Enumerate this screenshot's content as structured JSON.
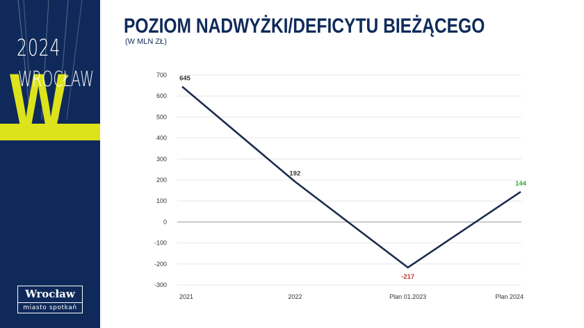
{
  "branding": {
    "year": "2024",
    "city_wordmark": "WROCŁAW",
    "big_letter": "W",
    "logo_name": "Wrocław",
    "logo_tagline": "miasto spotkań",
    "panel_color": "#0f2a5a",
    "accent_color": "#dde31a"
  },
  "header": {
    "title": "POZIOM NADWYŻKI/DEFICYTU BIEŻĄCEGO",
    "subtitle": "(W MLN ZŁ)"
  },
  "chart_data": {
    "type": "line",
    "categories": [
      "2021",
      "2022",
      "Plan 01.2023",
      "Plan 2024"
    ],
    "series": [
      {
        "values": [
          645,
          192,
          -217,
          144
        ],
        "color": "#1b2a4e"
      }
    ],
    "data_labels": [
      {
        "text": "645",
        "color": "#333333"
      },
      {
        "text": "192",
        "color": "#333333"
      },
      {
        "text": "-217",
        "color": "#c0392b"
      },
      {
        "text": "144",
        "color": "#3aa83a"
      }
    ],
    "ylim": [
      -300,
      700
    ],
    "yticks": [
      "700",
      "600",
      "500",
      "400",
      "300",
      "200",
      "100",
      "0",
      "-100",
      "-200",
      "-300"
    ],
    "ytick_values": [
      700,
      600,
      500,
      400,
      300,
      200,
      100,
      0,
      -100,
      -200,
      -300
    ],
    "grid": true,
    "legend": "none"
  }
}
